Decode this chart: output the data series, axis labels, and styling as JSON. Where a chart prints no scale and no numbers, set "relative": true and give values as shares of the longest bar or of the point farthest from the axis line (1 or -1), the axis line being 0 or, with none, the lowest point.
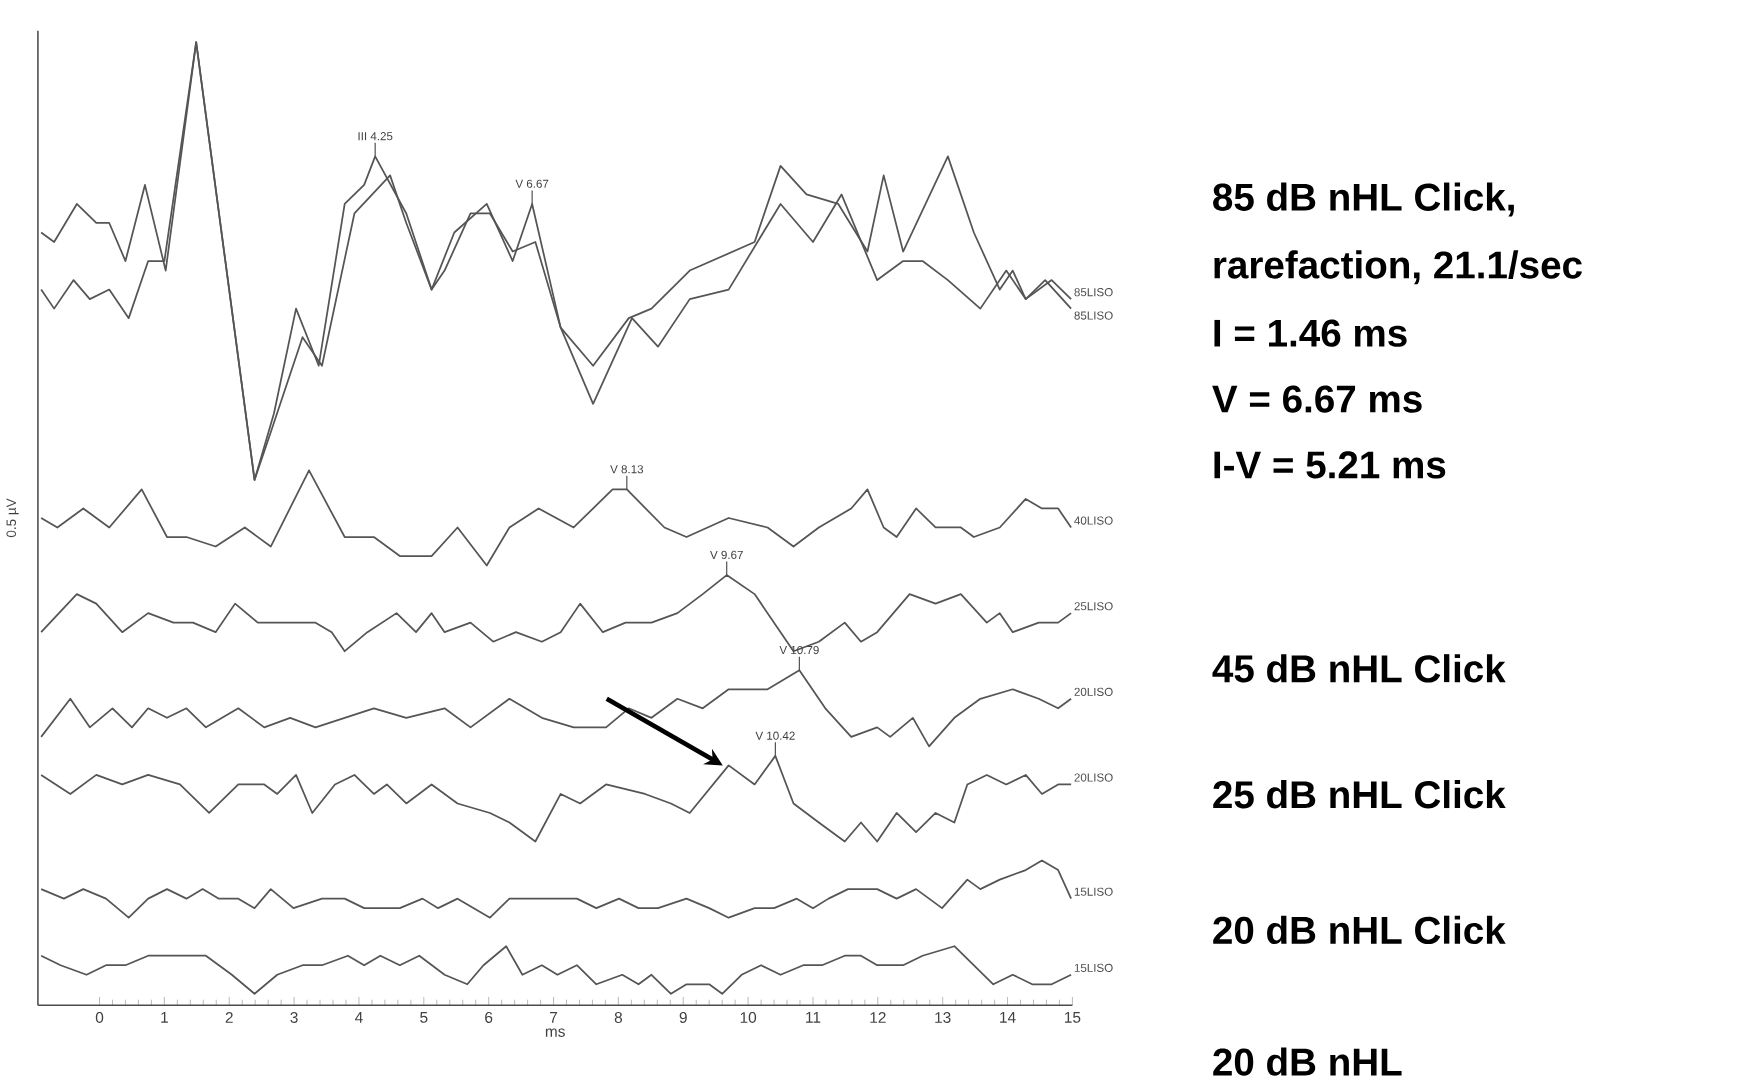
{
  "chart_data": {
    "type": "line",
    "relative": true,
    "xlabel": "ms",
    "ylabel": "0.5 µV",
    "xlim": [
      -0.95,
      15
    ],
    "xticks": [
      0,
      1,
      2,
      3,
      4,
      5,
      6,
      7,
      8,
      9,
      10,
      11,
      12,
      13,
      14,
      15
    ],
    "marker": "none",
    "line_style": "solid",
    "series": [
      {
        "name": "85LISO",
        "color": "#555555",
        "x": [
          -0.9,
          -0.7,
          -0.35,
          -0.05,
          0.15,
          0.4,
          0.7,
          1.02,
          1.49,
          2.39,
          2.69,
          3.03,
          3.38,
          3.78,
          4.08,
          4.25,
          4.73,
          5.12,
          5.47,
          5.97,
          6.37,
          6.67,
          7.11,
          7.61,
          8.16,
          8.51,
          9.1,
          10.1,
          10.5,
          10.9,
          11.39,
          11.84,
          12.09,
          12.39,
          13.08,
          13.48,
          13.88,
          14.08,
          14.28,
          14.68,
          14.98
        ],
        "values": [
          0.8,
          0.79,
          0.83,
          0.81,
          0.81,
          0.77,
          0.85,
          0.76,
          1.0,
          0.54,
          0.61,
          0.72,
          0.66,
          0.83,
          0.85,
          0.88,
          0.82,
          0.74,
          0.8,
          0.83,
          0.77,
          0.83,
          0.7,
          0.66,
          0.71,
          0.72,
          0.76,
          0.79,
          0.87,
          0.84,
          0.83,
          0.78,
          0.86,
          0.78,
          0.88,
          0.8,
          0.74,
          0.76,
          0.73,
          0.75,
          0.73
        ]
      },
      {
        "name": "85LISO",
        "color": "#555555",
        "x": [
          -0.9,
          -0.7,
          -0.4,
          -0.15,
          0.15,
          0.45,
          0.75,
          1.0,
          1.49,
          2.39,
          2.64,
          3.13,
          3.43,
          3.93,
          4.48,
          4.73,
          5.12,
          5.32,
          5.72,
          6.02,
          6.37,
          6.72,
          7.11,
          7.61,
          8.21,
          8.61,
          9.1,
          9.7,
          10.5,
          11.0,
          11.44,
          11.99,
          12.39,
          12.69,
          13.08,
          13.58,
          13.98,
          14.28,
          14.58,
          14.98
        ],
        "values": [
          0.74,
          0.72,
          0.75,
          0.73,
          0.74,
          0.71,
          0.77,
          0.77,
          1.0,
          0.54,
          0.59,
          0.69,
          0.66,
          0.82,
          0.86,
          0.81,
          0.74,
          0.76,
          0.82,
          0.82,
          0.78,
          0.79,
          0.7,
          0.62,
          0.71,
          0.68,
          0.73,
          0.74,
          0.83,
          0.79,
          0.84,
          0.75,
          0.77,
          0.77,
          0.75,
          0.72,
          0.76,
          0.73,
          0.75,
          0.72
        ]
      },
      {
        "name": "40LISO",
        "color": "#555555",
        "x": [
          -0.9,
          -0.65,
          -0.25,
          0.15,
          0.65,
          1.04,
          1.34,
          1.79,
          2.24,
          2.64,
          3.23,
          3.78,
          4.23,
          4.63,
          5.12,
          5.52,
          5.97,
          6.32,
          6.77,
          7.31,
          7.91,
          8.13,
          8.71,
          9.05,
          9.7,
          10.3,
          10.7,
          11.09,
          11.59,
          11.84,
          12.09,
          12.29,
          12.59,
          12.89,
          13.28,
          13.48,
          13.88,
          14.28,
          14.53,
          14.78,
          14.98
        ],
        "values": [
          0.5,
          0.49,
          0.51,
          0.49,
          0.53,
          0.48,
          0.48,
          0.47,
          0.49,
          0.47,
          0.55,
          0.48,
          0.48,
          0.46,
          0.46,
          0.49,
          0.45,
          0.49,
          0.51,
          0.49,
          0.53,
          0.53,
          0.49,
          0.48,
          0.5,
          0.49,
          0.47,
          0.49,
          0.51,
          0.53,
          0.49,
          0.48,
          0.51,
          0.49,
          0.49,
          0.48,
          0.49,
          0.52,
          0.51,
          0.51,
          0.49
        ]
      },
      {
        "name": "25LISO",
        "color": "#555555",
        "x": [
          -0.9,
          -0.35,
          -0.05,
          0.35,
          0.75,
          1.14,
          1.44,
          1.79,
          2.09,
          2.44,
          2.84,
          3.33,
          3.58,
          3.78,
          4.13,
          4.58,
          4.88,
          5.12,
          5.32,
          5.72,
          6.07,
          6.42,
          6.82,
          7.11,
          7.41,
          7.76,
          8.11,
          8.51,
          8.91,
          9.3,
          9.67,
          10.1,
          10.4,
          10.7,
          11.09,
          11.49,
          11.74,
          11.99,
          12.49,
          12.89,
          13.28,
          13.68,
          13.88,
          14.08,
          14.48,
          14.78,
          14.98
        ],
        "values": [
          0.38,
          0.42,
          0.41,
          0.38,
          0.4,
          0.39,
          0.39,
          0.38,
          0.41,
          0.39,
          0.39,
          0.39,
          0.38,
          0.36,
          0.38,
          0.4,
          0.38,
          0.4,
          0.38,
          0.39,
          0.37,
          0.38,
          0.37,
          0.38,
          0.41,
          0.38,
          0.39,
          0.39,
          0.4,
          0.42,
          0.44,
          0.42,
          0.39,
          0.36,
          0.37,
          0.39,
          0.37,
          0.38,
          0.42,
          0.41,
          0.42,
          0.39,
          0.4,
          0.38,
          0.39,
          0.39,
          0.4
        ]
      },
      {
        "name": "20LISO",
        "color": "#555555",
        "x": [
          -0.9,
          -0.45,
          -0.15,
          0.2,
          0.5,
          0.75,
          1.04,
          1.34,
          1.64,
          2.14,
          2.54,
          2.94,
          3.33,
          3.78,
          4.23,
          4.73,
          5.32,
          5.72,
          6.32,
          6.82,
          7.31,
          7.81,
          8.16,
          8.51,
          8.91,
          9.3,
          9.7,
          10.3,
          10.79,
          11.19,
          11.59,
          11.99,
          12.19,
          12.54,
          12.79,
          13.18,
          13.58,
          14.08,
          14.48,
          14.78,
          14.98
        ],
        "values": [
          0.27,
          0.31,
          0.28,
          0.3,
          0.28,
          0.3,
          0.29,
          0.3,
          0.28,
          0.3,
          0.28,
          0.29,
          0.28,
          0.29,
          0.3,
          0.29,
          0.3,
          0.28,
          0.31,
          0.29,
          0.28,
          0.28,
          0.3,
          0.29,
          0.31,
          0.3,
          0.32,
          0.32,
          0.34,
          0.3,
          0.27,
          0.28,
          0.27,
          0.29,
          0.26,
          0.29,
          0.31,
          0.32,
          0.31,
          0.3,
          0.31
        ]
      },
      {
        "name": "20LISO",
        "color": "#555555",
        "x": [
          -0.9,
          -0.45,
          -0.05,
          0.35,
          0.75,
          1.24,
          1.69,
          2.14,
          2.54,
          2.74,
          3.03,
          3.28,
          3.63,
          3.93,
          4.23,
          4.43,
          4.73,
          5.12,
          5.52,
          6.02,
          6.32,
          6.72,
          7.11,
          7.41,
          7.81,
          8.41,
          8.81,
          9.1,
          9.7,
          10.1,
          10.42,
          10.7,
          11.09,
          11.49,
          11.74,
          11.99,
          12.29,
          12.59,
          12.89,
          13.18,
          13.38,
          13.68,
          13.98,
          14.28,
          14.53,
          14.78,
          14.98
        ],
        "values": [
          0.23,
          0.21,
          0.23,
          0.22,
          0.23,
          0.22,
          0.19,
          0.22,
          0.22,
          0.21,
          0.23,
          0.19,
          0.22,
          0.23,
          0.21,
          0.22,
          0.2,
          0.22,
          0.2,
          0.19,
          0.18,
          0.16,
          0.21,
          0.2,
          0.22,
          0.21,
          0.2,
          0.19,
          0.24,
          0.22,
          0.25,
          0.2,
          0.18,
          0.16,
          0.18,
          0.16,
          0.19,
          0.17,
          0.19,
          0.18,
          0.22,
          0.23,
          0.22,
          0.23,
          0.21,
          0.22,
          0.22
        ]
      },
      {
        "name": "15LISO",
        "color": "#555555",
        "x": [
          -0.9,
          -0.55,
          -0.25,
          0.1,
          0.45,
          0.75,
          1.04,
          1.34,
          1.59,
          1.84,
          2.14,
          2.39,
          2.64,
          2.99,
          3.43,
          3.78,
          4.08,
          4.33,
          4.63,
          4.98,
          5.22,
          5.52,
          6.02,
          6.32,
          6.62,
          7.01,
          7.36,
          7.66,
          8.01,
          8.31,
          8.61,
          9.05,
          9.4,
          9.7,
          10.1,
          10.4,
          10.75,
          11.0,
          11.24,
          11.54,
          11.99,
          12.29,
          12.59,
          12.99,
          13.38,
          13.58,
          13.88,
          14.28,
          14.53,
          14.78,
          14.98
        ],
        "values": [
          0.11,
          0.1,
          0.11,
          0.1,
          0.08,
          0.1,
          0.11,
          0.1,
          0.11,
          0.1,
          0.1,
          0.09,
          0.11,
          0.09,
          0.1,
          0.1,
          0.09,
          0.09,
          0.09,
          0.1,
          0.09,
          0.1,
          0.08,
          0.1,
          0.1,
          0.1,
          0.1,
          0.09,
          0.1,
          0.09,
          0.09,
          0.1,
          0.09,
          0.08,
          0.09,
          0.09,
          0.1,
          0.09,
          0.1,
          0.11,
          0.11,
          0.1,
          0.11,
          0.09,
          0.12,
          0.11,
          0.12,
          0.13,
          0.14,
          0.13,
          0.1
        ]
      },
      {
        "name": "15LISO",
        "color": "#555555",
        "x": [
          -0.9,
          -0.6,
          -0.2,
          0.1,
          0.4,
          0.75,
          1.14,
          1.64,
          2.04,
          2.39,
          2.74,
          3.13,
          3.43,
          3.83,
          4.08,
          4.33,
          4.63,
          4.93,
          5.32,
          5.67,
          5.92,
          6.27,
          6.52,
          6.82,
          7.06,
          7.36,
          7.66,
          8.06,
          8.31,
          8.51,
          8.81,
          9.05,
          9.4,
          9.6,
          9.9,
          10.2,
          10.5,
          10.85,
          11.14,
          11.49,
          11.74,
          11.99,
          12.39,
          12.69,
          13.18,
          13.48,
          13.78,
          14.08,
          14.38,
          14.68,
          14.98
        ],
        "values": [
          0.04,
          0.03,
          0.02,
          0.03,
          0.03,
          0.04,
          0.04,
          0.04,
          0.02,
          0.0,
          0.02,
          0.03,
          0.03,
          0.04,
          0.03,
          0.04,
          0.03,
          0.04,
          0.02,
          0.01,
          0.03,
          0.05,
          0.02,
          0.03,
          0.02,
          0.03,
          0.01,
          0.02,
          0.01,
          0.02,
          0.0,
          0.01,
          0.01,
          0.0,
          0.02,
          0.03,
          0.02,
          0.03,
          0.03,
          0.04,
          0.04,
          0.03,
          0.03,
          0.04,
          0.05,
          0.03,
          0.01,
          0.02,
          0.01,
          0.01,
          0.02
        ]
      }
    ],
    "annotations": [
      {
        "text": "III 4.25",
        "x": 4.25,
        "y": 0.88
      },
      {
        "text": "V 6.67",
        "x": 6.67,
        "y": 0.83
      },
      {
        "text": "V 8.13",
        "x": 8.13,
        "y": 0.53
      },
      {
        "text": "V 9.67",
        "x": 9.67,
        "y": 0.44
      },
      {
        "text": "V 10.79",
        "x": 10.79,
        "y": 0.34
      },
      {
        "text": "V 10.42",
        "x": 10.42,
        "y": 0.25
      },
      "85 dB nHL Click,",
      "rarefaction, 21.1/sec",
      "I = 1.46 ms",
      "V = 6.67 ms",
      "I-V = 5.21 ms",
      "45 dB nHL Click",
      "25 dB nHL Click",
      "20 dB nHL Click",
      "20 dB nHL"
    ]
  }
}
